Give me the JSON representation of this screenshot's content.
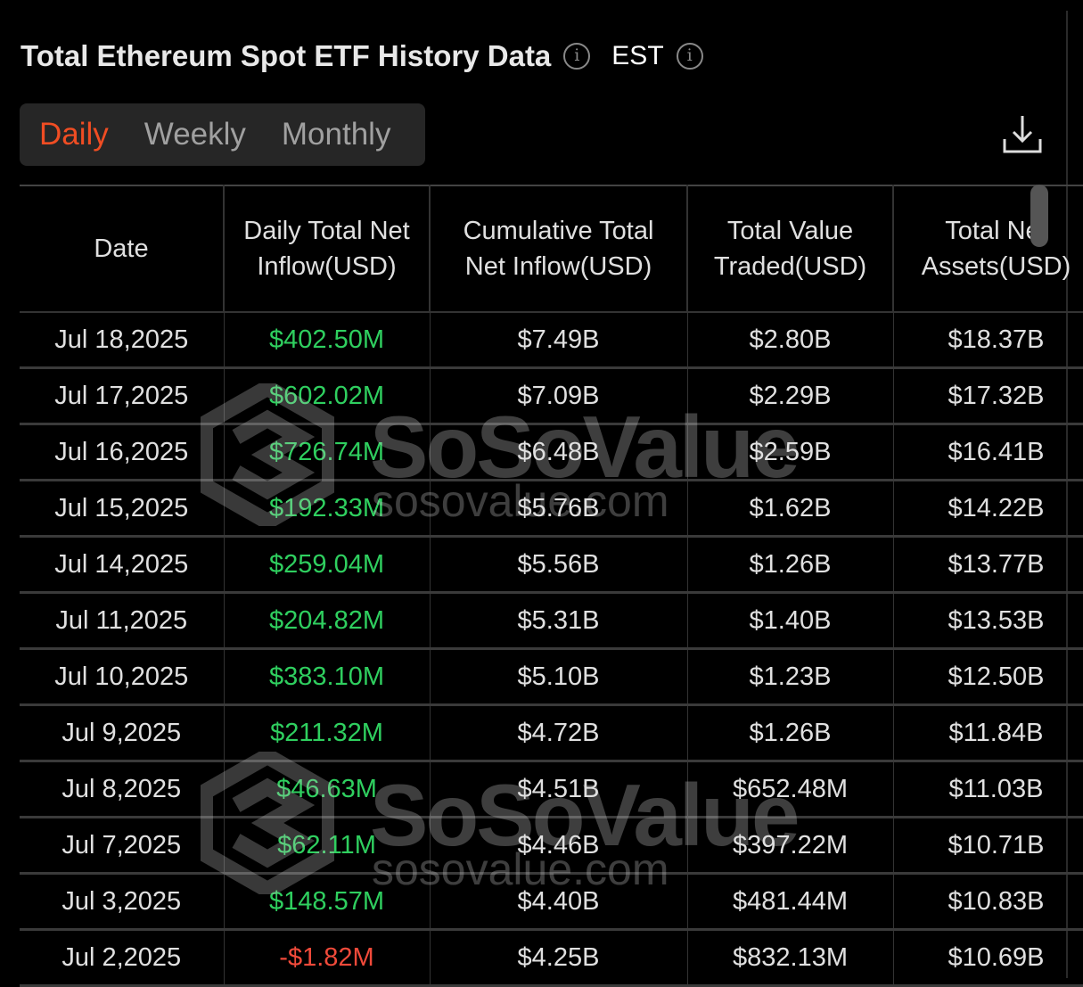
{
  "header": {
    "title": "Total Ethereum Spot ETF History Data",
    "title_info_icon": "info-circle-icon",
    "timezone": "EST",
    "timezone_info_icon": "info-circle-icon",
    "download_icon": "download-icon"
  },
  "tabs": [
    {
      "label": "Daily",
      "active": true
    },
    {
      "label": "Weekly",
      "active": false
    },
    {
      "label": "Monthly",
      "active": false
    }
  ],
  "colors": {
    "accent": "#f04d23",
    "positive": "#2fcf5f",
    "negative": "#f04a3a",
    "background": "#000000"
  },
  "watermark": {
    "brand": "SoSoValue",
    "url": "sosovalue.com"
  },
  "table": {
    "columns": [
      "Date",
      "Daily Total Net Inflow(USD)",
      "Cumulative Total Net Inflow(USD)",
      "Total Value Traded(USD)",
      "Total Net Assets(USD)"
    ],
    "rows": [
      [
        "Jul 18,2025",
        "$402.50M",
        "$7.49B",
        "$2.80B",
        "$18.37B"
      ],
      [
        "Jul 17,2025",
        "$602.02M",
        "$7.09B",
        "$2.29B",
        "$17.32B"
      ],
      [
        "Jul 16,2025",
        "$726.74M",
        "$6.48B",
        "$2.59B",
        "$16.41B"
      ],
      [
        "Jul 15,2025",
        "$192.33M",
        "$5.76B",
        "$1.62B",
        "$14.22B"
      ],
      [
        "Jul 14,2025",
        "$259.04M",
        "$5.56B",
        "$1.26B",
        "$13.77B"
      ],
      [
        "Jul 11,2025",
        "$204.82M",
        "$5.31B",
        "$1.40B",
        "$13.53B"
      ],
      [
        "Jul 10,2025",
        "$383.10M",
        "$5.10B",
        "$1.23B",
        "$12.50B"
      ],
      [
        "Jul 9,2025",
        "$211.32M",
        "$4.72B",
        "$1.26B",
        "$11.84B"
      ],
      [
        "Jul 8,2025",
        "$46.63M",
        "$4.51B",
        "$652.48M",
        "$11.03B"
      ],
      [
        "Jul 7,2025",
        "$62.11M",
        "$4.46B",
        "$397.22M",
        "$10.71B"
      ],
      [
        "Jul 3,2025",
        "$148.57M",
        "$4.40B",
        "$481.44M",
        "$10.83B"
      ],
      [
        "Jul 2,2025",
        "-$1.82M",
        "$4.25B",
        "$832.13M",
        "$10.69B"
      ]
    ]
  }
}
